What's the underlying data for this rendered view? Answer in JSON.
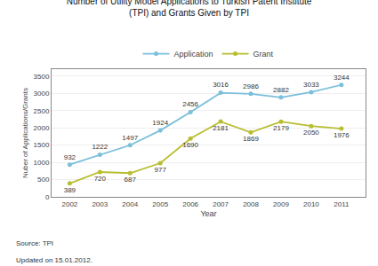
{
  "chart_data": {
    "type": "line",
    "title": "Number of Utility Model Applications to Turkish Patent Institute\n(TPI) and Grants Given by TPI",
    "xlabel": "Year",
    "ylabel": "Nuber of Applications/Grants",
    "x": [
      2002,
      2003,
      2004,
      2005,
      2006,
      2007,
      2008,
      2009,
      2010,
      2011
    ],
    "series": [
      {
        "name": "Application",
        "color": "#7bbfda",
        "marker": "circle",
        "values": [
          932,
          1222,
          1497,
          1924,
          2456,
          3016,
          2986,
          2882,
          3033,
          3244
        ]
      },
      {
        "name": "Grant",
        "color": "#b8be30",
        "marker": "circle",
        "values": [
          389,
          720,
          687,
          977,
          1690,
          2181,
          1869,
          2179,
          2050,
          1976
        ]
      }
    ],
    "xlim": [
      2001.4,
      2011.8
    ],
    "xticks": [
      2002,
      2003,
      2004,
      2005,
      2006,
      2007,
      2008,
      2009,
      2010,
      2011
    ],
    "ylim": [
      0,
      3700
    ],
    "yticks": [
      0,
      500,
      1000,
      1500,
      2000,
      2500,
      3000,
      3500
    ],
    "grid": true,
    "legend": "top",
    "data_labels": true,
    "annotations": [
      "Source: TPI",
      "Updated on 15.01.2012."
    ]
  }
}
